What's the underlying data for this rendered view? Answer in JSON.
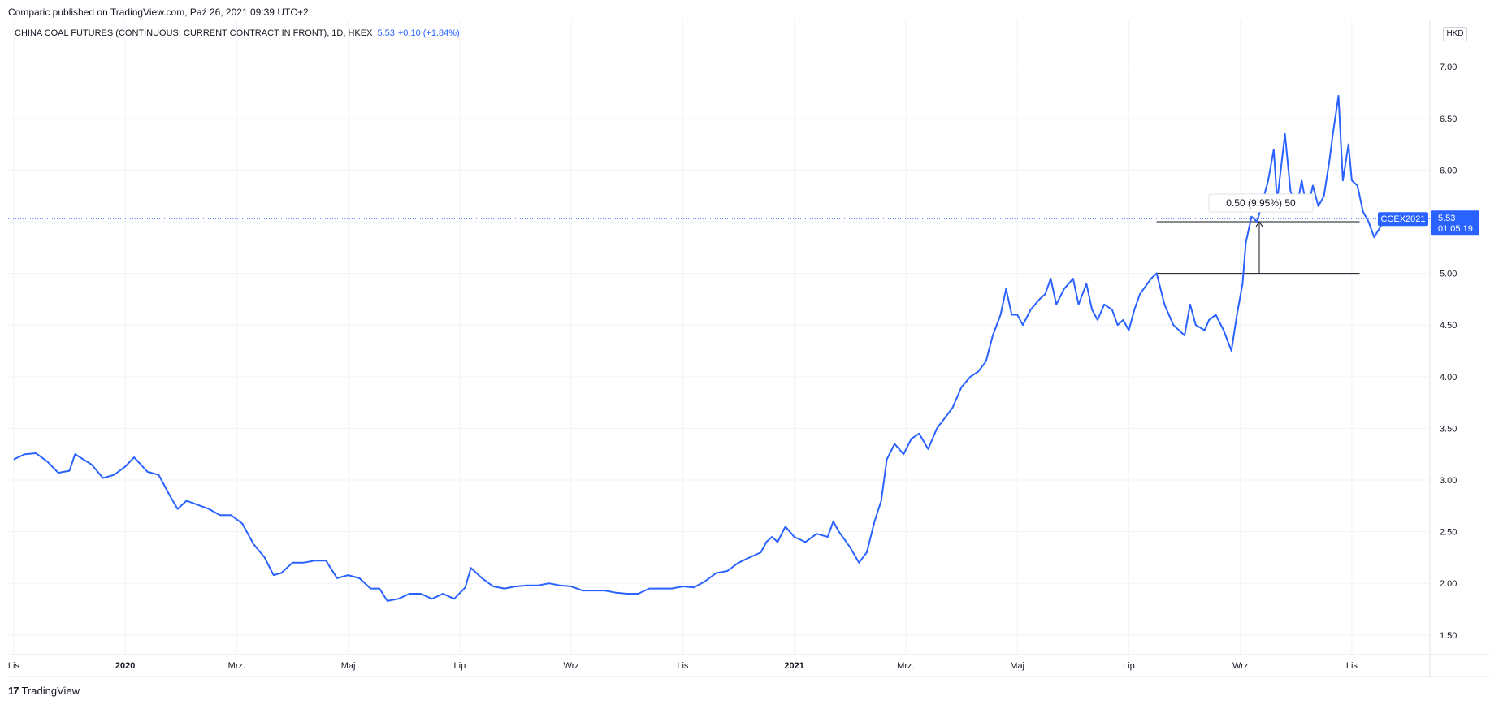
{
  "publish_line": "Comparic published on TradingView.com, Paź 26, 2021 09:39 UTC+2",
  "header": {
    "symbol_desc": "CHINA COAL FUTURES (CONTINUOUS: CURRENT CONTRACT IN FRONT), 1D, HKEX",
    "last": "5.53",
    "change": "+0.10 (+1.84%)"
  },
  "currency": "HKD",
  "price_label": {
    "ticker": "CCEX2021",
    "price": "5.53",
    "countdown": "01:05:19"
  },
  "measure_label": "0.50 (9.95%) 50",
  "footer": {
    "logo_mark": "17",
    "logo_text": "TradingView"
  },
  "colors": {
    "line": "#2962ff",
    "grid": "#f0f3fa",
    "axis_text": "#131722",
    "label_bg": "#2962ff"
  },
  "chart_data": {
    "type": "line",
    "x_ticks": [
      {
        "label": "Lis",
        "x": 0,
        "bold": false
      },
      {
        "label": "2020",
        "x": 1,
        "bold": true
      },
      {
        "label": "Mrz.",
        "x": 2,
        "bold": false
      },
      {
        "label": "Maj",
        "x": 3,
        "bold": false
      },
      {
        "label": "Lip",
        "x": 4,
        "bold": false
      },
      {
        "label": "Wrz",
        "x": 5,
        "bold": false
      },
      {
        "label": "Lis",
        "x": 6,
        "bold": false
      },
      {
        "label": "2021",
        "x": 7,
        "bold": true
      },
      {
        "label": "Mrz.",
        "x": 8,
        "bold": false
      },
      {
        "label": "Maj",
        "x": 9,
        "bold": false
      },
      {
        "label": "Lip",
        "x": 10,
        "bold": false
      },
      {
        "label": "Wrz",
        "x": 11,
        "bold": false
      },
      {
        "label": "Lis",
        "x": 12,
        "bold": false
      }
    ],
    "y_ticks": [
      "7.00",
      "6.50",
      "6.00",
      "5.50",
      "5.00",
      "4.50",
      "4.00",
      "3.50",
      "3.00",
      "2.50",
      "2.00",
      "1.50"
    ],
    "ylim": [
      1.31,
      7.45
    ],
    "xlim": [
      -0.05,
      12.7
    ],
    "current_price": 5.53,
    "measure": {
      "x_start": 10.25,
      "x_end": 12.07,
      "x_arrow": 11.17,
      "y_low": 5.0,
      "y_high": 5.5
    },
    "series": [
      {
        "values": [
          [
            0.0,
            3.2
          ],
          [
            0.1,
            3.25
          ],
          [
            0.2,
            3.26
          ],
          [
            0.3,
            3.18
          ],
          [
            0.4,
            3.07
          ],
          [
            0.5,
            3.09
          ],
          [
            0.55,
            3.25
          ],
          [
            0.7,
            3.15
          ],
          [
            0.8,
            3.02
          ],
          [
            0.9,
            3.05
          ],
          [
            1.0,
            3.13
          ],
          [
            1.08,
            3.22
          ],
          [
            1.2,
            3.08
          ],
          [
            1.3,
            3.05
          ],
          [
            1.4,
            2.85
          ],
          [
            1.47,
            2.72
          ],
          [
            1.55,
            2.8
          ],
          [
            1.65,
            2.76
          ],
          [
            1.75,
            2.72
          ],
          [
            1.85,
            2.66
          ],
          [
            1.95,
            2.66
          ],
          [
            2.05,
            2.58
          ],
          [
            2.15,
            2.38
          ],
          [
            2.25,
            2.25
          ],
          [
            2.33,
            2.08
          ],
          [
            2.4,
            2.1
          ],
          [
            2.5,
            2.2
          ],
          [
            2.6,
            2.2
          ],
          [
            2.7,
            2.22
          ],
          [
            2.8,
            2.22
          ],
          [
            2.9,
            2.05
          ],
          [
            3.0,
            2.08
          ],
          [
            3.1,
            2.05
          ],
          [
            3.2,
            1.95
          ],
          [
            3.28,
            1.95
          ],
          [
            3.35,
            1.83
          ],
          [
            3.45,
            1.85
          ],
          [
            3.55,
            1.9
          ],
          [
            3.65,
            1.9
          ],
          [
            3.75,
            1.85
          ],
          [
            3.85,
            1.9
          ],
          [
            3.95,
            1.85
          ],
          [
            4.05,
            1.96
          ],
          [
            4.1,
            2.15
          ],
          [
            4.2,
            2.05
          ],
          [
            4.3,
            1.97
          ],
          [
            4.4,
            1.95
          ],
          [
            4.5,
            1.97
          ],
          [
            4.6,
            1.98
          ],
          [
            4.7,
            1.98
          ],
          [
            4.8,
            2.0
          ],
          [
            4.9,
            1.98
          ],
          [
            5.0,
            1.97
          ],
          [
            5.1,
            1.93
          ],
          [
            5.2,
            1.93
          ],
          [
            5.3,
            1.93
          ],
          [
            5.4,
            1.91
          ],
          [
            5.5,
            1.9
          ],
          [
            5.6,
            1.9
          ],
          [
            5.7,
            1.95
          ],
          [
            5.8,
            1.95
          ],
          [
            5.9,
            1.95
          ],
          [
            6.0,
            1.97
          ],
          [
            6.1,
            1.96
          ],
          [
            6.2,
            2.02
          ],
          [
            6.3,
            2.1
          ],
          [
            6.4,
            2.12
          ],
          [
            6.5,
            2.2
          ],
          [
            6.6,
            2.25
          ],
          [
            6.7,
            2.3
          ],
          [
            6.75,
            2.4
          ],
          [
            6.8,
            2.45
          ],
          [
            6.85,
            2.4
          ],
          [
            6.92,
            2.55
          ],
          [
            7.0,
            2.45
          ],
          [
            7.1,
            2.4
          ],
          [
            7.2,
            2.48
          ],
          [
            7.3,
            2.45
          ],
          [
            7.35,
            2.6
          ],
          [
            7.4,
            2.5
          ],
          [
            7.5,
            2.35
          ],
          [
            7.58,
            2.2
          ],
          [
            7.65,
            2.3
          ],
          [
            7.72,
            2.6
          ],
          [
            7.78,
            2.8
          ],
          [
            7.83,
            3.2
          ],
          [
            7.9,
            3.35
          ],
          [
            7.98,
            3.25
          ],
          [
            8.05,
            3.4
          ],
          [
            8.12,
            3.45
          ],
          [
            8.2,
            3.3
          ],
          [
            8.28,
            3.5
          ],
          [
            8.35,
            3.6
          ],
          [
            8.42,
            3.7
          ],
          [
            8.5,
            3.9
          ],
          [
            8.58,
            4.0
          ],
          [
            8.65,
            4.05
          ],
          [
            8.72,
            4.15
          ],
          [
            8.78,
            4.4
          ],
          [
            8.85,
            4.6
          ],
          [
            8.9,
            4.85
          ],
          [
            8.95,
            4.6
          ],
          [
            9.0,
            4.6
          ],
          [
            9.05,
            4.5
          ],
          [
            9.12,
            4.65
          ],
          [
            9.2,
            4.75
          ],
          [
            9.25,
            4.8
          ],
          [
            9.3,
            4.95
          ],
          [
            9.35,
            4.7
          ],
          [
            9.42,
            4.85
          ],
          [
            9.5,
            4.95
          ],
          [
            9.55,
            4.7
          ],
          [
            9.62,
            4.9
          ],
          [
            9.67,
            4.65
          ],
          [
            9.72,
            4.55
          ],
          [
            9.78,
            4.7
          ],
          [
            9.85,
            4.65
          ],
          [
            9.9,
            4.5
          ],
          [
            9.95,
            4.55
          ],
          [
            10.0,
            4.45
          ],
          [
            10.05,
            4.65
          ],
          [
            10.1,
            4.8
          ],
          [
            10.2,
            4.95
          ],
          [
            10.25,
            5.0
          ],
          [
            10.32,
            4.7
          ],
          [
            10.4,
            4.5
          ],
          [
            10.5,
            4.4
          ],
          [
            10.55,
            4.7
          ],
          [
            10.6,
            4.5
          ],
          [
            10.68,
            4.45
          ],
          [
            10.72,
            4.55
          ],
          [
            10.78,
            4.6
          ],
          [
            10.85,
            4.45
          ],
          [
            10.92,
            4.25
          ],
          [
            10.97,
            4.6
          ],
          [
            11.02,
            4.9
          ],
          [
            11.05,
            5.3
          ],
          [
            11.1,
            5.55
          ],
          [
            11.15,
            5.5
          ],
          [
            11.2,
            5.7
          ],
          [
            11.25,
            5.9
          ],
          [
            11.3,
            6.2
          ],
          [
            11.33,
            5.7
          ],
          [
            11.4,
            6.35
          ],
          [
            11.45,
            5.8
          ],
          [
            11.5,
            5.6
          ],
          [
            11.55,
            5.9
          ],
          [
            11.6,
            5.6
          ],
          [
            11.65,
            5.85
          ],
          [
            11.7,
            5.65
          ],
          [
            11.75,
            5.75
          ],
          [
            11.8,
            6.1
          ],
          [
            11.83,
            6.35
          ],
          [
            11.88,
            6.72
          ],
          [
            11.92,
            5.9
          ],
          [
            11.97,
            6.25
          ],
          [
            12.0,
            5.9
          ],
          [
            12.05,
            5.85
          ],
          [
            12.1,
            5.6
          ],
          [
            12.15,
            5.5
          ],
          [
            12.2,
            5.35
          ],
          [
            12.3,
            5.53
          ]
        ]
      }
    ]
  }
}
